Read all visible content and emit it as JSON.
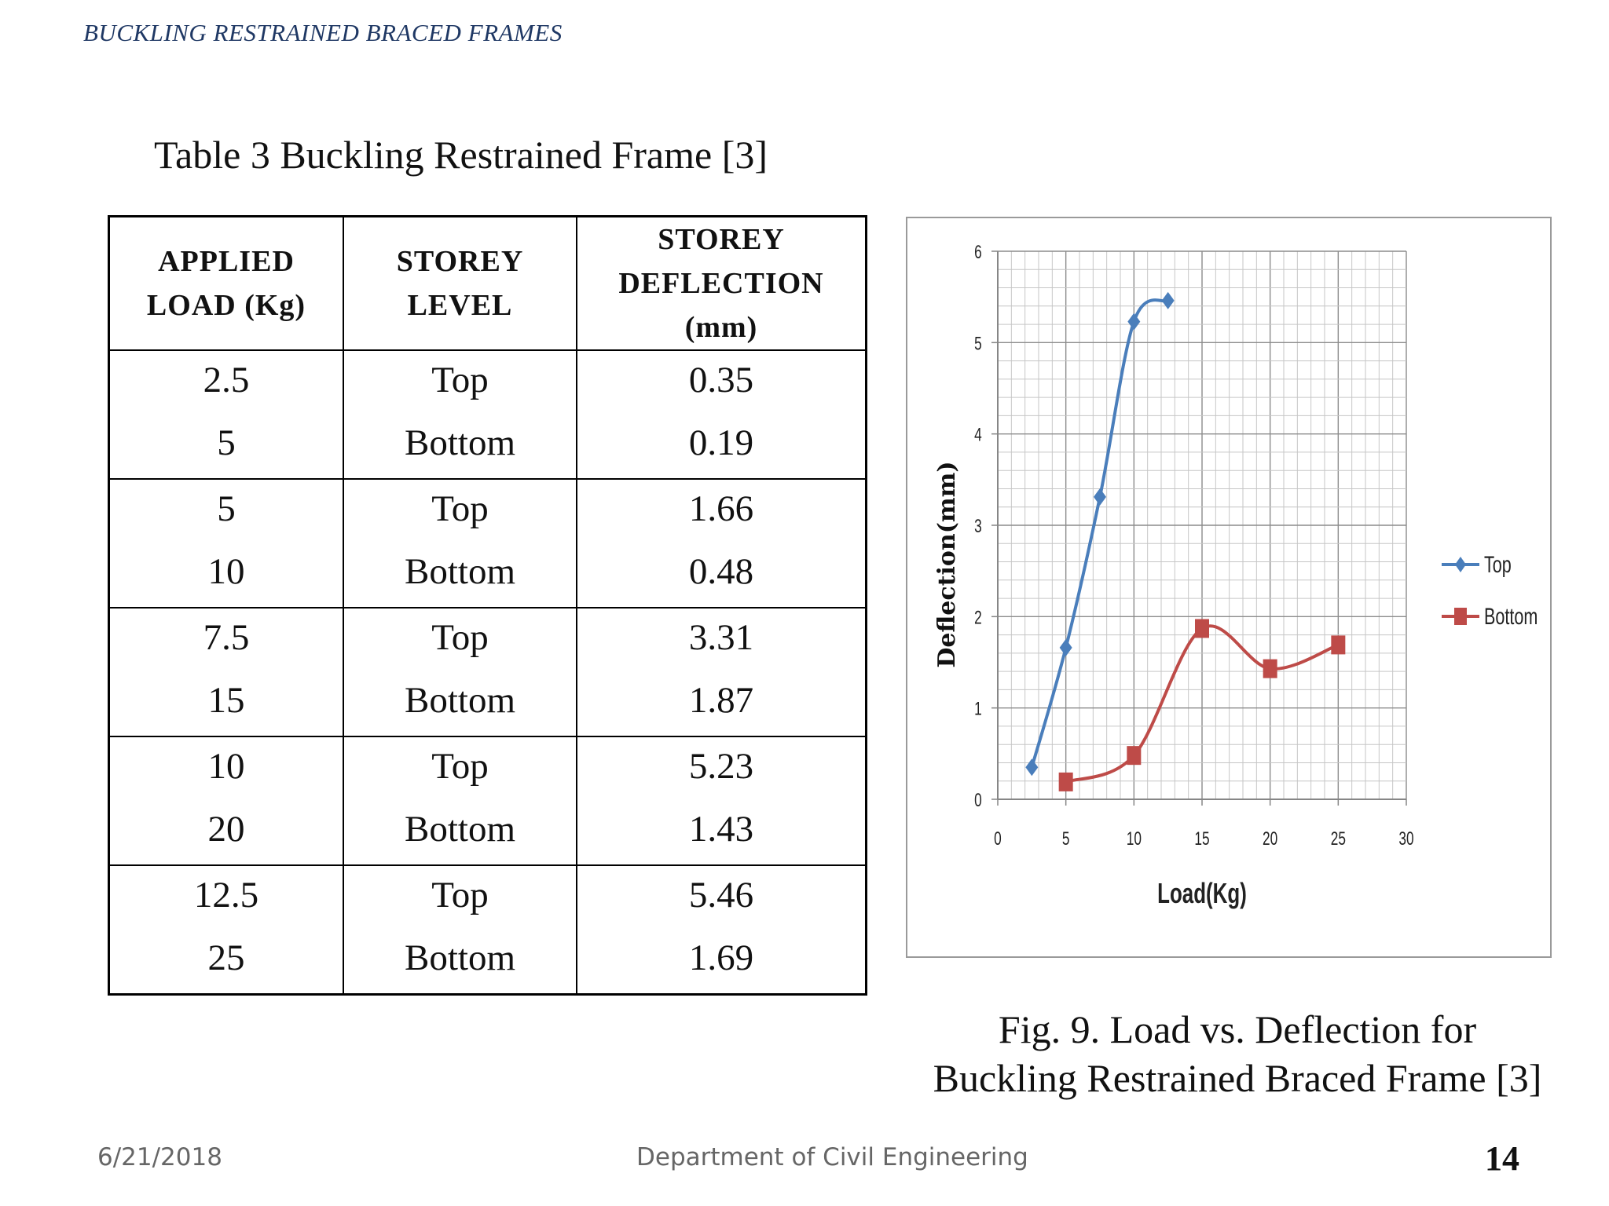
{
  "header": {
    "title": "BUCKLING RESTRAINED BRACED FRAMES"
  },
  "table": {
    "caption": "Table 3 Buckling Restrained Frame  [3]",
    "headers": [
      [
        "APPLIED",
        "LOAD (Kg)"
      ],
      [
        "STOREY",
        "LEVEL"
      ],
      [
        "STOREY",
        "DEFLECTION",
        "(mm)"
      ]
    ],
    "rows": [
      {
        "load": [
          "2.5",
          "5"
        ],
        "level": [
          "Top",
          "Bottom"
        ],
        "deflection": [
          "0.35",
          "0.19"
        ]
      },
      {
        "load": [
          "5",
          "10"
        ],
        "level": [
          "Top",
          "Bottom"
        ],
        "deflection": [
          "1.66",
          "0.48"
        ]
      },
      {
        "load": [
          "7.5",
          "15"
        ],
        "level": [
          "Top",
          "Bottom"
        ],
        "deflection": [
          "3.31",
          "1.87"
        ]
      },
      {
        "load": [
          "10",
          "20"
        ],
        "level": [
          "Top",
          "Bottom"
        ],
        "deflection": [
          "5.23",
          "1.43"
        ]
      },
      {
        "load": [
          "12.5",
          "25"
        ],
        "level": [
          "Top",
          "Bottom"
        ],
        "deflection": [
          "5.46",
          "1.69"
        ]
      }
    ]
  },
  "chart_data": {
    "type": "line",
    "title": "",
    "xlabel": "Load(Kg)",
    "ylabel": "Deflection(mm)",
    "xlim": [
      0,
      30
    ],
    "ylim": [
      0,
      6
    ],
    "xticks": [
      0,
      5,
      10,
      15,
      20,
      25,
      30
    ],
    "yticks": [
      0,
      1,
      2,
      3,
      4,
      5,
      6
    ],
    "grid": true,
    "legend_position": "right",
    "series": [
      {
        "name": "Top",
        "color": "#4a7ebb",
        "marker": "diamond",
        "x": [
          2.5,
          5,
          7.5,
          10,
          12.5
        ],
        "y": [
          0.35,
          1.66,
          3.31,
          5.23,
          5.46
        ]
      },
      {
        "name": "Bottom",
        "color": "#be4b48",
        "marker": "square",
        "x": [
          5,
          10,
          15,
          20,
          25
        ],
        "y": [
          0.19,
          0.48,
          1.87,
          1.43,
          1.69
        ]
      }
    ]
  },
  "figure": {
    "caption_line1": "Fig. 9. Load vs. Deflection for",
    "caption_line2": "Buckling Restrained Braced Frame [3]"
  },
  "footer": {
    "date": "6/21/2018",
    "department": "Department of Civil Engineering",
    "page_number": "14"
  }
}
